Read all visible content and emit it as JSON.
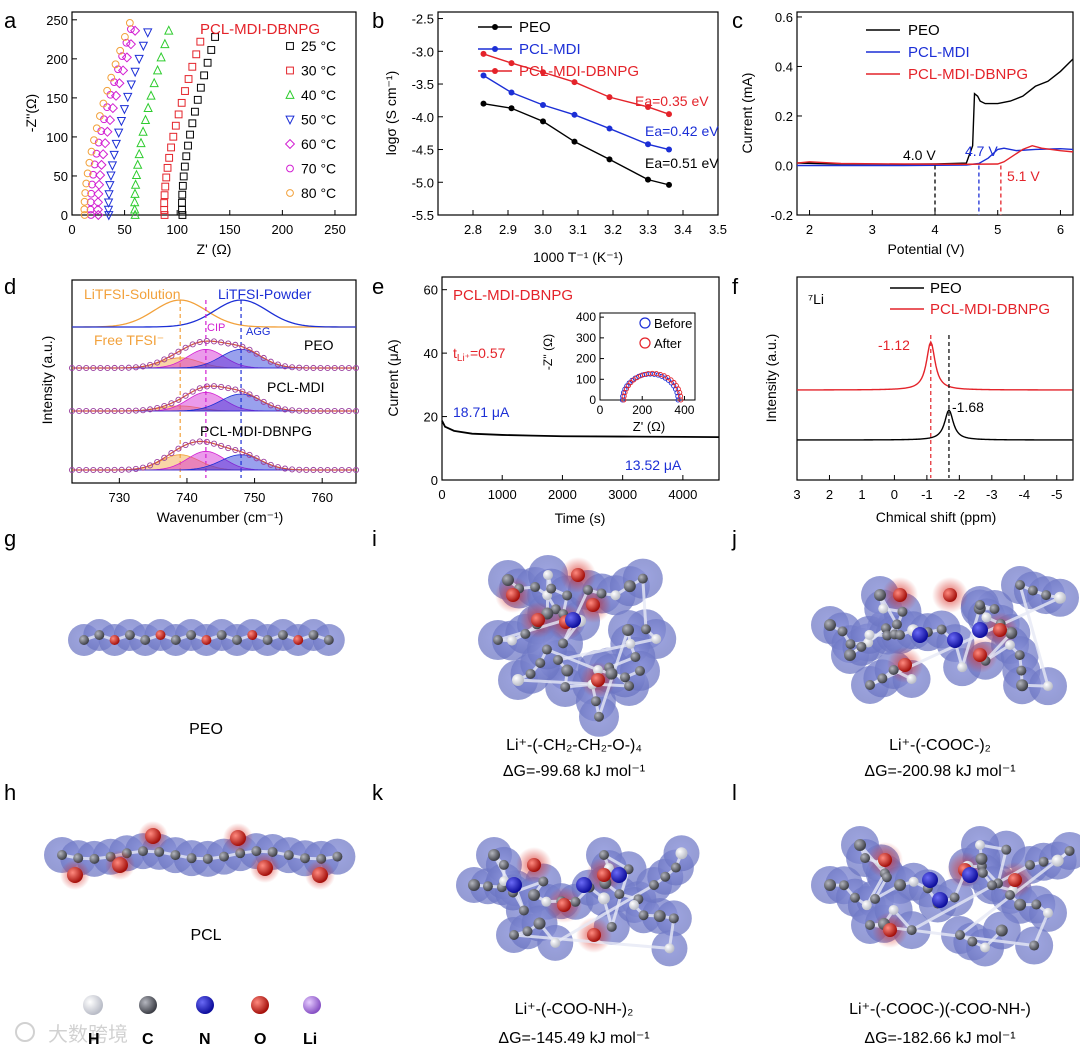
{
  "figure": {
    "panel_letters": [
      "a",
      "b",
      "c",
      "d",
      "e",
      "f",
      "g",
      "h",
      "i",
      "j",
      "k",
      "l"
    ],
    "watermark": "大数跨境"
  },
  "colors": {
    "red": "#e4232a",
    "blue": "#1c2fd6",
    "green": "#2ecc2e",
    "magenta": "#d21fd2",
    "orange": "#f2a13b",
    "black": "#000000",
    "molecule_surface": "#7d86cf",
    "oxygen": "#d7261e",
    "nitrogen": "#1d1de0",
    "carbon": "#5b5d66",
    "hydrogen": "#dfe1ea",
    "lithium": "#a877dd"
  },
  "chart_data": [
    {
      "panel": "a",
      "type": "scatter",
      "title": "PCL-MDI-DBNPG",
      "xlabel": "Z' (Ω)",
      "ylabel": "-Z''(Ω)",
      "xlim": [
        0,
        270
      ],
      "ylim": [
        0,
        260
      ],
      "xticks": [
        "0",
        "50",
        "100",
        "150",
        "200",
        "250"
      ],
      "yticks": [
        "0",
        "50",
        "100",
        "150",
        "200",
        "250"
      ],
      "series": [
        {
          "name": "25 °C",
          "r0": 105,
          "top": 228,
          "xmax": 136
        },
        {
          "name": "30 °C",
          "r0": 88,
          "top": 222,
          "xmax": 122
        },
        {
          "name": "40 °C",
          "r0": 60,
          "top": 236,
          "xmax": 92
        },
        {
          "name": "50 °C",
          "r0": 35,
          "top": 234,
          "xmax": 72
        },
        {
          "name": "60 °C",
          "r0": 25,
          "top": 236,
          "xmax": 60
        },
        {
          "name": "70 °C",
          "r0": 18,
          "top": 238,
          "xmax": 56
        },
        {
          "name": "80 °C",
          "r0": 12,
          "top": 246,
          "xmax": 55
        }
      ]
    },
    {
      "panel": "b",
      "type": "line",
      "xlabel": "1000 T⁻¹ (K⁻¹)",
      "ylabel": "logσ (S cm⁻¹)",
      "xlim": [
        2.7,
        3.5
      ],
      "ylim": [
        -5.5,
        -2.4
      ],
      "xticks": [
        "2.8",
        "2.9",
        "3.0",
        "3.1",
        "3.2",
        "3.3",
        "3.4",
        "3.5"
      ],
      "yticks": [
        "-2.5",
        "-3.0",
        "-3.5",
        "-4.0",
        "-4.5",
        "-5.0",
        "-5.5"
      ],
      "x": [
        2.83,
        2.91,
        3.0,
        3.09,
        3.19,
        3.3,
        3.36
      ],
      "series": [
        {
          "name": "PEO",
          "values": [
            -3.8,
            -3.87,
            -4.07,
            -4.38,
            -4.65,
            -4.96,
            -5.04
          ],
          "ea": "Ea=0.51 eV"
        },
        {
          "name": "PCL-MDI",
          "values": [
            -3.37,
            -3.63,
            -3.82,
            -3.97,
            -4.18,
            -4.42,
            -4.5
          ],
          "ea": "Ea=0.42 eV"
        },
        {
          "name": "PCL-MDI-DBNPG",
          "values": [
            -3.04,
            -3.18,
            -3.32,
            -3.47,
            -3.7,
            -3.85,
            -3.96
          ],
          "ea": "Ea=0.35 eV"
        }
      ]
    },
    {
      "panel": "c",
      "type": "line",
      "xlabel": "Potential (V)",
      "ylabel": "Current (mA)",
      "xlim": [
        1.8,
        6.2
      ],
      "ylim": [
        -0.2,
        0.62
      ],
      "xticks": [
        "2",
        "3",
        "4",
        "5",
        "6"
      ],
      "yticks": [
        "0.6",
        "0.4",
        "0.2",
        "0.0",
        "-0.2"
      ],
      "series": [
        {
          "name": "PEO",
          "x": [
            1.8,
            2.5,
            3.5,
            4.0,
            4.3,
            4.5,
            4.6,
            4.63,
            4.68,
            4.72,
            4.8,
            5.0,
            5.2,
            5.4,
            5.6,
            5.8,
            6.0,
            6.2
          ],
          "values": [
            0.01,
            0.006,
            0.005,
            0.006,
            0.008,
            0.01,
            0.08,
            0.29,
            0.28,
            0.26,
            0.25,
            0.25,
            0.26,
            0.28,
            0.32,
            0.34,
            0.38,
            0.43
          ]
        },
        {
          "name": "PCL-MDI",
          "x": [
            1.8,
            2.5,
            3.5,
            4.5,
            4.7,
            4.85,
            5.0,
            5.1,
            5.3,
            5.6,
            6.0,
            6.2
          ],
          "values": [
            0.0,
            0.0,
            0.0,
            0.002,
            0.008,
            0.03,
            0.065,
            0.07,
            0.06,
            0.065,
            0.068,
            0.065
          ]
        },
        {
          "name": "PCL-MDI-DBNPG",
          "x": [
            1.8,
            2.0,
            2.5,
            3.5,
            4.5,
            5.0,
            5.1,
            5.25,
            5.4,
            5.55,
            5.7,
            6.0,
            6.2
          ],
          "values": [
            0.01,
            0.015,
            0.008,
            0.006,
            0.005,
            0.006,
            0.015,
            0.04,
            0.065,
            0.08,
            0.07,
            0.06,
            0.055
          ]
        }
      ],
      "annotations": [
        "4.0 V",
        "4.7 V",
        "5.1 V"
      ]
    },
    {
      "panel": "d",
      "type": "line",
      "xlabel": "Wavenumber (cm⁻¹)",
      "ylabel": "Intensity (a.u.)",
      "xlim": [
        723,
        765
      ],
      "xticks": [
        "730",
        "740",
        "750",
        "760"
      ],
      "labels": {
        "solution": "LiTFSI-Solution",
        "powder": "LiTFSI-Powder",
        "free": "Free TFSI⁻",
        "cip": "CIP",
        "agg": "AGG"
      },
      "rows": [
        {
          "name": "PEO",
          "free_amp": 0.3,
          "cip_amp": 0.55,
          "agg_amp": 0.55
        },
        {
          "name": "PCL-MDI",
          "free_amp": 0.15,
          "cip_amp": 0.55,
          "agg_amp": 0.5
        },
        {
          "name": "PCL-MDI-DBNPG",
          "free_amp": 0.45,
          "cip_amp": 0.55,
          "agg_amp": 0.45
        }
      ]
    },
    {
      "panel": "e",
      "type": "line",
      "title": "PCL-MDI-DBNPG",
      "xlabel": "Time (s)",
      "ylabel": "Current (μA)",
      "xlim": [
        0,
        4600
      ],
      "ylim": [
        0,
        64
      ],
      "xticks": [
        "0",
        "1000",
        "2000",
        "3000",
        "4000"
      ],
      "yticks": [
        "0",
        "20",
        "40",
        "60"
      ],
      "x": [
        0,
        50,
        200,
        500,
        1000,
        1500,
        2000,
        3000,
        4000,
        4600
      ],
      "values": [
        18.71,
        16.8,
        15.5,
        14.6,
        14.2,
        14.0,
        13.8,
        13.7,
        13.6,
        13.52
      ],
      "tli": "0.57",
      "start_label": "18.71 μA",
      "end_label": "13.52 μA",
      "inset": {
        "xlabel": "Z' (Ω)",
        "ylabel": "-Z'' (Ω)",
        "xticks": [
          "0",
          "200",
          "400"
        ],
        "yticks": [
          "0",
          "100",
          "200",
          "300",
          "400"
        ],
        "legend": [
          "Before",
          "After"
        ]
      }
    },
    {
      "panel": "f",
      "type": "line",
      "xlabel": "Chmical shift (ppm)",
      "ylabel": "Intensity (a.u.)",
      "xlim": [
        3,
        -5.5
      ],
      "xticks": [
        "3",
        "2",
        "1",
        "0",
        "-1",
        "-2",
        "-3",
        "-4",
        "-5"
      ],
      "nucleus": "⁷Li",
      "series": [
        {
          "name": "PEO",
          "peak": -1.68,
          "label": "-1.68"
        },
        {
          "name": "PCL-MDI-DBNPG",
          "peak": -1.12,
          "label": "-1.12"
        }
      ]
    }
  ],
  "molecules": {
    "g": {
      "caption": "PEO"
    },
    "h": {
      "caption": "PCL"
    },
    "i": {
      "caption_species": "Li⁺-(-CH₂-CH₂-O-)₄",
      "dg": "ΔG=-99.68 kJ mol⁻¹"
    },
    "j": {
      "caption_species": "Li⁺-(-COOC-)₂",
      "dg": "ΔG=-200.98 kJ mol⁻¹"
    },
    "k": {
      "caption_species": "Li⁺-(-COO-NH-)₂",
      "dg": "ΔG=-145.49 kJ mol⁻¹"
    },
    "l": {
      "caption_species": "Li⁺-(-COOC-)(-COO-NH-)",
      "dg": "ΔG=-182.66 kJ mol⁻¹"
    }
  },
  "atom_legend": [
    "H",
    "C",
    "N",
    "O",
    "Li"
  ]
}
